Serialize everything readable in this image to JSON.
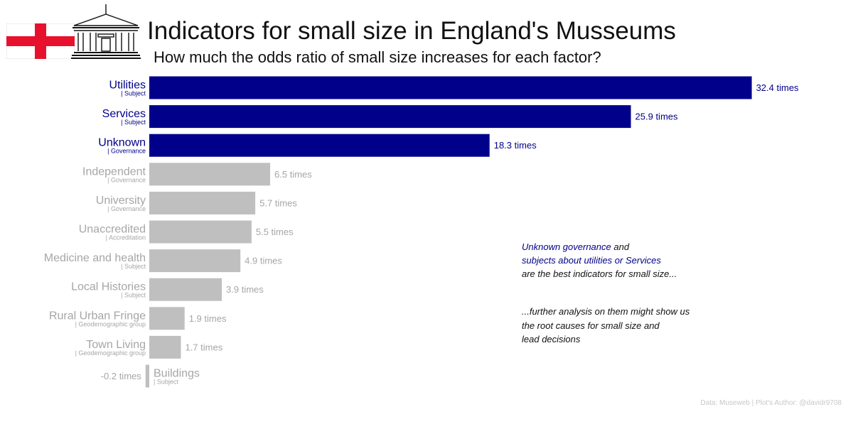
{
  "header": {
    "title": "Indicators for small size in England's Musseums",
    "subtitle": "How much the odds ratio of small size increases for each factor?"
  },
  "colors": {
    "highlight": "#00008b",
    "muted_bar": "#bfbfbf",
    "muted_text": "#a6a6a6",
    "flag_red": "#e8112d"
  },
  "icons": {
    "flag": "england-flag-icon",
    "logo": "museum-building-icon"
  },
  "chart_data": {
    "type": "bar",
    "orientation": "horizontal",
    "title": "Indicators for small size in England's Musseums",
    "subtitle": "How much the odds ratio of small size increases for each factor?",
    "value_suffix": " times",
    "xlim": [
      -0.2,
      32.4
    ],
    "grid": false,
    "rows": [
      {
        "label": "Utilities",
        "group": "| Subject",
        "value": 32.4,
        "display": "32.4 times",
        "highlight": true
      },
      {
        "label": "Services",
        "group": "| Subject",
        "value": 25.9,
        "display": "25.9 times",
        "highlight": true
      },
      {
        "label": "Unknown",
        "group": "| Governance",
        "value": 18.3,
        "display": "18.3 times",
        "highlight": true
      },
      {
        "label": "Independent",
        "group": "| Governance",
        "value": 6.5,
        "display": "6.5 times",
        "highlight": false
      },
      {
        "label": "University",
        "group": "| Governance",
        "value": 5.7,
        "display": "5.7 times",
        "highlight": false
      },
      {
        "label": "Unaccredited",
        "group": "| Accreditation",
        "value": 5.5,
        "display": "5.5 times",
        "highlight": false
      },
      {
        "label": "Medicine and health",
        "group": "| Subject",
        "value": 4.9,
        "display": "4.9 times",
        "highlight": false
      },
      {
        "label": "Local Histories",
        "group": "| Subject",
        "value": 3.9,
        "display": "3.9 times",
        "highlight": false
      },
      {
        "label": "Rural Urban Fringe",
        "group": "| Geodemographic group",
        "value": 1.9,
        "display": "1.9 times",
        "highlight": false
      },
      {
        "label": "Town Living",
        "group": "| Geodemographic group",
        "value": 1.7,
        "display": "1.7 times",
        "highlight": false
      },
      {
        "label": "Buildings",
        "group": "| Subject",
        "value": -0.2,
        "display": "-0.2 times",
        "highlight": false
      }
    ]
  },
  "annotation1": {
    "line1_highlight": "Unknown governance",
    "line1_rest": " and",
    "line2_highlight": "subjects about utilities or Services",
    "line3": "are the best indicators for small size..."
  },
  "annotation2": {
    "line1": "...further analysis on them might show us",
    "line2": "the root causes for small size and",
    "line3": "lead decisions"
  },
  "caption": "Data: Museweb | Plot's Author: @davidr9708"
}
